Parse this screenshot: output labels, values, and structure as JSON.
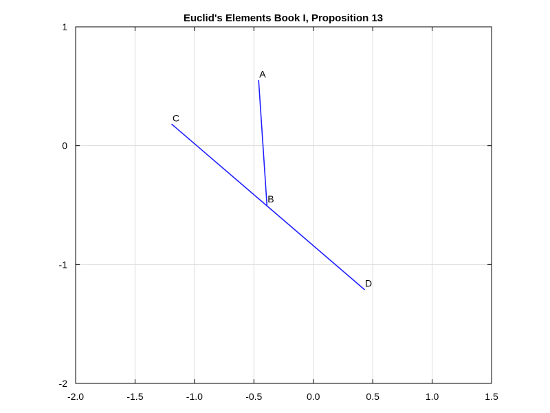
{
  "chart_data": {
    "type": "line",
    "title": "Euclid's Elements Book I, Proposition 13",
    "xlabel": "",
    "ylabel": "",
    "xlim": [
      -2.0,
      1.5
    ],
    "ylim": [
      -2,
      1
    ],
    "x_ticks": [
      "-2.0",
      "-1.5",
      "-1.0",
      "-0.5",
      "0.0",
      "0.5",
      "1.0",
      "1.5"
    ],
    "y_ticks": [
      "1",
      "0",
      "-1",
      "-2"
    ],
    "grid": true,
    "line_color": "#1f1fff",
    "points": [
      {
        "label": "A",
        "x": -0.46,
        "y": 0.55
      },
      {
        "label": "B",
        "x": -0.39,
        "y": -0.5
      },
      {
        "label": "C",
        "x": -1.19,
        "y": 0.18
      },
      {
        "label": "D",
        "x": 0.43,
        "y": -1.21
      }
    ],
    "segments": [
      {
        "from": "A",
        "to": "B"
      },
      {
        "from": "C",
        "to": "D"
      }
    ]
  }
}
